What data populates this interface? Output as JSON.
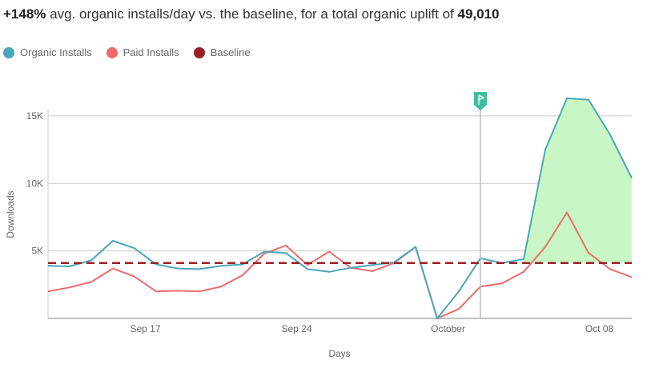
{
  "headline": {
    "pct": "+148%",
    "text": " avg. organic installs/day vs. the baseline, for a total organic uplift of ",
    "total": "49,010"
  },
  "colors": {
    "organic": "#4aa6b8",
    "paid": "#ef6b6b",
    "baseline": "#9b2025",
    "uplift_fill": "#c8f7c5",
    "flag": "#3bbfa0"
  },
  "chart_data": {
    "type": "line",
    "xlabel": "Days",
    "ylabel": "Downloads",
    "ylim": [
      0,
      16000
    ],
    "y_ticks": [
      {
        "value": 5000,
        "label": "5K"
      },
      {
        "value": 10000,
        "label": "10K"
      },
      {
        "value": 15000,
        "label": "15K"
      }
    ],
    "x_ticks": [
      {
        "index": 4.5,
        "label": "Sep 17"
      },
      {
        "index": 11.5,
        "label": "Sep 24"
      },
      {
        "index": 18.5,
        "label": "October"
      },
      {
        "index": 25.5,
        "label": "Oct 08"
      }
    ],
    "event_index": 20,
    "uplift_start_index": 22,
    "grid": true,
    "legend_position": "top-left",
    "series": [
      {
        "name": "Organic Installs",
        "key": "organic",
        "values": [
          3900,
          3850,
          4300,
          5750,
          5200,
          4000,
          3700,
          3650,
          3900,
          4000,
          4950,
          4850,
          3650,
          3450,
          3750,
          3950,
          4150,
          5300,
          0,
          2000,
          4450,
          4100,
          4400,
          12500,
          16300,
          16200,
          13600,
          10400
        ]
      },
      {
        "name": "Paid Installs",
        "key": "paid",
        "values": [
          2000,
          2300,
          2700,
          3700,
          3100,
          2000,
          2050,
          2000,
          2350,
          3200,
          4800,
          5400,
          3950,
          4950,
          3750,
          3500,
          4100,
          5300,
          0,
          700,
          2350,
          2600,
          3450,
          5300,
          7850,
          4850,
          3650,
          3050
        ]
      },
      {
        "name": "Baseline",
        "key": "baseline",
        "values": [
          4100,
          4100,
          4100,
          4100,
          4100,
          4100,
          4100,
          4100,
          4100,
          4100,
          4100,
          4100,
          4100,
          4100,
          4100,
          4100,
          4100,
          4100,
          4100,
          4100,
          4100,
          4100,
          4100,
          4100,
          4100,
          4100,
          4100,
          4100
        ]
      }
    ]
  }
}
